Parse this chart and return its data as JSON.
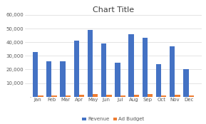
{
  "title": "Chart Title",
  "categories": [
    "Jan",
    "Feb",
    "Mar",
    "Apr",
    "May",
    "Jun",
    "Jul",
    "Aug",
    "Sep",
    "Oct",
    "Nov",
    "Dec"
  ],
  "revenue": [
    33000,
    26000,
    26000,
    41000,
    49000,
    39000,
    25000,
    46000,
    43000,
    24000,
    37000,
    20000
  ],
  "ad_budget": [
    1000,
    1000,
    1000,
    1500,
    2000,
    1200,
    800,
    1500,
    2000,
    1000,
    1200,
    1000
  ],
  "revenue_color": "#4472C4",
  "ad_budget_color": "#ED7D31",
  "ylim": [
    0,
    60000
  ],
  "yticks": [
    10000,
    20000,
    30000,
    40000,
    50000,
    60000
  ],
  "background_color": "#ffffff",
  "plot_bg_color": "#ffffff",
  "grid_color": "#d9d9d9",
  "title_fontsize": 8,
  "tick_fontsize": 5,
  "legend_fontsize": 5
}
